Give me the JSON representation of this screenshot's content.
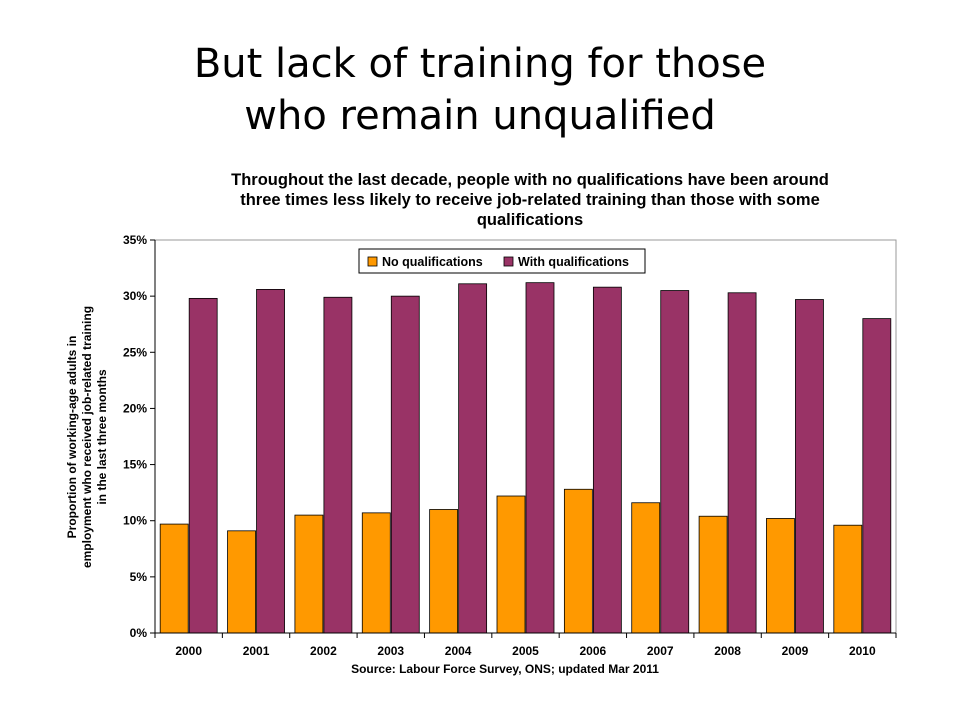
{
  "slide": {
    "title_line1": "But lack of training for those",
    "title_line2": "who remain unqualified"
  },
  "chart_data": {
    "type": "bar",
    "title_lines": [
      "Throughout the last decade, people with no qualifications have been around",
      "three times less likely to receive job-related training than those with some",
      "qualifications"
    ],
    "ylabel_lines": [
      "Proportion of working-age adults in",
      "employment who received job-related training",
      "in the last three months"
    ],
    "xlabel": "",
    "source": "Source: Labour Force Survey, ONS; updated Mar 2011",
    "categories": [
      "2000",
      "2001",
      "2002",
      "2003",
      "2004",
      "2005",
      "2006",
      "2007",
      "2008",
      "2009",
      "2010"
    ],
    "series": [
      {
        "name": "No qualifications",
        "color": "#FF9900",
        "values": [
          9.7,
          9.1,
          10.5,
          10.7,
          11.0,
          12.2,
          12.8,
          11.6,
          10.4,
          10.2,
          9.6
        ]
      },
      {
        "name": "With qualifications",
        "color": "#993366",
        "values": [
          29.8,
          30.6,
          29.9,
          30.0,
          31.1,
          31.2,
          30.8,
          30.5,
          30.3,
          29.7,
          28.0
        ]
      }
    ],
    "ylim": [
      0,
      35
    ],
    "yticks": [
      "0%",
      "5%",
      "10%",
      "15%",
      "20%",
      "25%",
      "30%",
      "35%"
    ],
    "ytick_values": [
      0,
      5,
      10,
      15,
      20,
      25,
      30,
      35
    ],
    "grid": false,
    "legend_position": "top-center"
  }
}
